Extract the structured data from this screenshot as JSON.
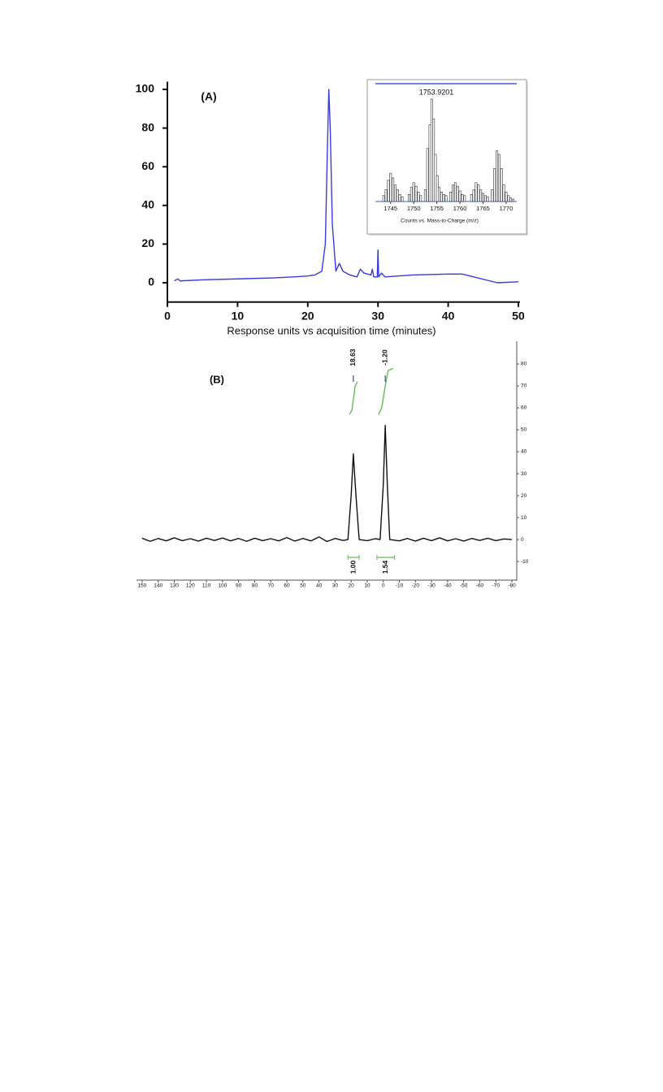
{
  "chart_data": [
    {
      "type": "line",
      "annotation": "(A)",
      "xlabel": "Response units vs acquisition time (minutes)",
      "xlim": [
        0,
        50
      ],
      "xticks": [
        0,
        10,
        20,
        30,
        40,
        50
      ],
      "ylim": [
        -10,
        104
      ],
      "yticks": [
        0,
        20,
        40,
        60,
        80,
        100
      ],
      "color": "#3a3ae0",
      "x": [
        1,
        1.5,
        1.8,
        2,
        5,
        10,
        15,
        18,
        20,
        21,
        22,
        22.5,
        22.8,
        23,
        23.2,
        23.5,
        24,
        24.5,
        25,
        26,
        27,
        27.5,
        28,
        29,
        29.2,
        29.4,
        29.9,
        30,
        30.1,
        30.5,
        31,
        35,
        40,
        42,
        47,
        50
      ],
      "values": [
        1,
        2,
        1,
        1,
        1.5,
        2,
        2.5,
        3,
        3.5,
        4,
        6,
        20,
        70,
        100,
        80,
        30,
        6,
        10,
        6,
        4,
        3,
        7,
        5,
        4,
        7,
        3,
        3,
        17,
        3,
        5,
        3,
        4,
        4.5,
        4.5,
        0,
        0.5
      ]
    },
    {
      "type": "bar",
      "annotation": "1753.9201",
      "xlabel": "Counts vs. Mass-to-Charge (m/z)",
      "xlim": [
        1741.7,
        1772.3
      ],
      "xticks": [
        1745,
        1750,
        1755,
        1760,
        1765,
        1770
      ],
      "ylim": [
        0,
        100
      ],
      "color": "#333333",
      "x": [
        1743.5,
        1744,
        1744.5,
        1745,
        1745.5,
        1746,
        1746.5,
        1747,
        1747.5,
        1749,
        1749.5,
        1750,
        1750.5,
        1751,
        1751.5,
        1752.5,
        1753,
        1753.5,
        1753.9,
        1754.3,
        1754.7,
        1755.1,
        1755.5,
        1756,
        1756.5,
        1757,
        1758,
        1758.5,
        1759,
        1759.5,
        1760,
        1760.5,
        1761,
        1762.5,
        1763,
        1763.5,
        1764,
        1764.5,
        1765,
        1765.5,
        1766,
        1767,
        1767.5,
        1768,
        1768.5,
        1769,
        1769.5,
        1770,
        1770.5,
        1771,
        1771.5
      ],
      "values": [
        5,
        10,
        18,
        24,
        20,
        14,
        10,
        6,
        4,
        6,
        12,
        16,
        13,
        8,
        5,
        10,
        45,
        65,
        87,
        70,
        40,
        22,
        12,
        8,
        6,
        5,
        8,
        14,
        16,
        13,
        9,
        6,
        5,
        6,
        10,
        16,
        14,
        10,
        7,
        5,
        4,
        10,
        28,
        43,
        40,
        28,
        14,
        8,
        5,
        3,
        2
      ]
    },
    {
      "type": "line",
      "annotation": "(B)",
      "xlim": [
        153.5,
        -83
      ],
      "xticks": [
        150,
        140,
        130,
        120,
        110,
        100,
        90,
        80,
        70,
        60,
        50,
        40,
        30,
        20,
        10,
        0,
        -10,
        -20,
        -30,
        -40,
        -50,
        -60,
        -70,
        -80
      ],
      "ylim": [
        -17,
        88.5
      ],
      "yticks": [
        -10,
        0,
        10,
        20,
        30,
        40,
        50,
        60,
        70,
        80
      ],
      "color": "#111111",
      "x": [
        150,
        145,
        140,
        135,
        130,
        125,
        120,
        115,
        110,
        105,
        100,
        95,
        90,
        85,
        80,
        75,
        70,
        65,
        60,
        55,
        50,
        45,
        40,
        35,
        30,
        25,
        22,
        20,
        18.63,
        17,
        15,
        10,
        5,
        2,
        0,
        -1.2,
        -2.5,
        -4,
        -10,
        -15,
        -20,
        -25,
        -30,
        -35,
        -40,
        -45,
        -50,
        -55,
        -60,
        -65,
        -70,
        -75,
        -80
      ],
      "values": [
        0.6,
        -0.8,
        0.5,
        -0.6,
        0.8,
        -0.5,
        0.4,
        -0.7,
        0.6,
        -0.4,
        0.7,
        -0.6,
        0.5,
        -0.8,
        0.6,
        -0.5,
        0.4,
        -0.6,
        0.9,
        -0.7,
        0.5,
        -0.6,
        1.2,
        -0.9,
        0.5,
        -0.4,
        0,
        20,
        39,
        20,
        0,
        -0.5,
        0.4,
        0,
        25,
        52,
        25,
        0,
        -0.6,
        0.5,
        -0.7,
        0.6,
        -0.5,
        0.8,
        -0.6,
        0.4,
        -0.7,
        0.5,
        -0.4,
        0.6,
        -0.5,
        0.3,
        0
      ],
      "peak_labels": [
        {
          "x": 18.63,
          "label": "18.63"
        },
        {
          "x": -1.2,
          "label": "-1.20"
        }
      ],
      "integrals": [
        {
          "label": "1.00",
          "range": [
            22,
            15
          ],
          "color": "#66bb55",
          "x": [
            21,
            19.5,
            18.6,
            17.5,
            16
          ],
          "values": [
            57,
            59,
            64,
            70,
            72
          ]
        },
        {
          "label": "1.54",
          "range": [
            4,
            -7
          ],
          "color": "#66bb55",
          "x": [
            3,
            1,
            -1.2,
            -3,
            -6
          ],
          "values": [
            57,
            60,
            70,
            77,
            78
          ]
        }
      ]
    }
  ]
}
